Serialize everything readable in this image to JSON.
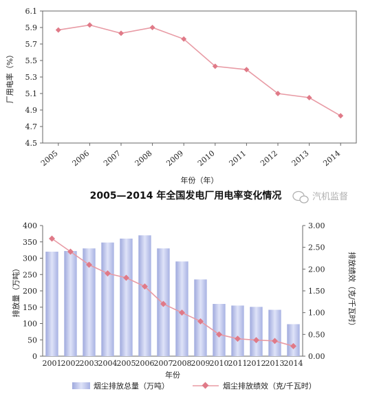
{
  "chart_data": [
    {
      "type": "line",
      "title": "2005—2014 年全国发电厂用电率变化情况",
      "xlabel": "年份（年）",
      "ylabel": "厂用电率（%）",
      "categories": [
        "2005",
        "2006",
        "2007",
        "2008",
        "2009",
        "2010",
        "2011",
        "2012",
        "2013",
        "2014"
      ],
      "values": [
        5.87,
        5.93,
        5.83,
        5.9,
        5.76,
        5.43,
        5.39,
        5.1,
        5.05,
        4.83
      ],
      "ylim": [
        4.5,
        6.1
      ],
      "yticks": [
        "4.5",
        "4.7",
        "4.9",
        "5.1",
        "5.3",
        "5.5",
        "5.7",
        "5.9",
        "6.1"
      ],
      "colors": {
        "line": "#e89aa4",
        "marker": "#e07a88"
      }
    },
    {
      "type": "bar",
      "xlabel": "年份",
      "categories": [
        "2001",
        "2002",
        "2003",
        "2004",
        "2005",
        "2006",
        "2007",
        "2008",
        "2009",
        "2010",
        "2011",
        "2012",
        "2013",
        "2014"
      ],
      "series": [
        {
          "name": "烟尘排放总量（万吨）",
          "axis": "left",
          "kind": "bar",
          "values": [
            320,
            322,
            330,
            348,
            360,
            370,
            330,
            290,
            235,
            160,
            155,
            151,
            142,
            98
          ]
        },
        {
          "name": "烟尘排放绩效（克/千瓦时）",
          "axis": "right",
          "kind": "line",
          "values": [
            2.7,
            2.4,
            2.1,
            1.9,
            1.8,
            1.6,
            1.2,
            1.0,
            0.8,
            0.5,
            0.4,
            0.37,
            0.35,
            0.23
          ]
        }
      ],
      "ylabel": "排放量（万吨）",
      "ylabel_right": "排放绩效（克/千瓦时）",
      "ylim": [
        0,
        400
      ],
      "ylim_right": [
        0,
        3.0
      ],
      "yticks": [
        "0",
        "50",
        "100",
        "150",
        "200",
        "250",
        "300",
        "350",
        "400"
      ],
      "yticks_right": [
        "0.00",
        "0.50",
        "1.00",
        "1.50",
        "2.00",
        "2.50",
        "3.00"
      ],
      "colors": {
        "bar": "#b9c3ec",
        "line": "#e89aa4",
        "marker": "#e07a88"
      }
    }
  ],
  "watermark": "汽机监督"
}
